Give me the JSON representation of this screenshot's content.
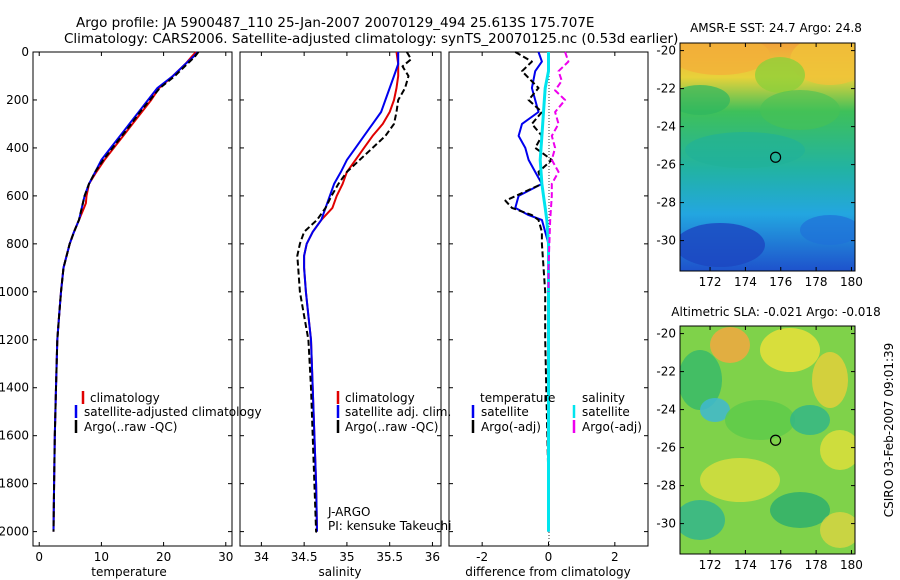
{
  "header": {
    "line1": "Argo profile: JA 5900487_110 25-Jan-2007 20070129_494 25.613S 175.707E",
    "line2": "Climatology: CARS2006. Satellite-adjusted climatology: synTS_20070125.nc (0.53d earlier)"
  },
  "footer_vertical": "CSIRO 03-Feb-2007 09:01:39",
  "colors": {
    "climatology": "#e00000",
    "satellite": "#0000ee",
    "argo": "#000000",
    "sat_salinity": "#00e5ee",
    "argo_salinity": "#ee00ee"
  },
  "chart_data": [
    {
      "type": "line",
      "panel": "temperature",
      "xlabel": "temperature",
      "xlim": [
        -1,
        31
      ],
      "ylim": [
        0,
        2060
      ],
      "y_reversed": true,
      "xticks": [
        0,
        10,
        20,
        30
      ],
      "yticks": [
        0,
        200,
        400,
        600,
        800,
        1000,
        1200,
        1400,
        1600,
        1800,
        2000
      ],
      "legend": [
        "climatology",
        "satellite-adjusted climatology",
        "Argo(..raw -QC)"
      ],
      "series": [
        {
          "name": "climatology",
          "color": "#e00000",
          "x": [
            25.2,
            24.5,
            23.5,
            21.5,
            19.3,
            18,
            16.5,
            15,
            13.5,
            12,
            10.5,
            9.2,
            8,
            7.6,
            7.5,
            7.2,
            6.4,
            5.6,
            4.9,
            4.4,
            3.9,
            3.5,
            3.2,
            2.9,
            2.7,
            2.5,
            2.4,
            2.3
          ],
          "y": [
            0,
            20,
            50,
            100,
            150,
            200,
            250,
            300,
            350,
            400,
            450,
            500,
            550,
            600,
            630,
            650,
            700,
            750,
            800,
            850,
            900,
            1000,
            1100,
            1200,
            1400,
            1600,
            1800,
            2000
          ]
        },
        {
          "name": "satellite-adjusted climatology",
          "color": "#0000ee",
          "x": [
            25.5,
            24.8,
            23.5,
            21.5,
            19,
            17.5,
            16,
            14.5,
            13,
            11.5,
            10,
            9,
            8,
            7.3,
            6.4,
            5.6,
            4.9,
            4.4,
            3.9,
            3.5,
            3.2,
            2.9,
            2.7,
            2.5,
            2.4,
            2.3
          ],
          "y": [
            0,
            20,
            50,
            100,
            150,
            200,
            250,
            300,
            350,
            400,
            450,
            500,
            550,
            600,
            700,
            750,
            800,
            850,
            900,
            1000,
            1100,
            1200,
            1400,
            1600,
            1800,
            2000
          ]
        },
        {
          "name": "Argo(..raw -QC)",
          "color": "#000000",
          "dash": true,
          "x": [
            25.6,
            25,
            23.8,
            21.8,
            19.4,
            17.8,
            16.2,
            14.8,
            13.3,
            11.8,
            10.3,
            9,
            8,
            7.3,
            6.4,
            5.6,
            4.9,
            4.4,
            3.9,
            3.5,
            3.2,
            2.9,
            2.7,
            2.5,
            2.4,
            2.3
          ],
          "y": [
            0,
            20,
            50,
            100,
            150,
            200,
            250,
            300,
            350,
            400,
            450,
            500,
            550,
            600,
            700,
            750,
            800,
            850,
            900,
            1000,
            1100,
            1200,
            1400,
            1600,
            1800,
            2000
          ]
        }
      ]
    },
    {
      "type": "line",
      "panel": "salinity",
      "xlabel": "salinity",
      "xlim": [
        33.75,
        36.1
      ],
      "ylim": [
        0,
        2060
      ],
      "y_reversed": true,
      "xticks": [
        34,
        34.5,
        35,
        35.5,
        36
      ],
      "legend": [
        "climatology",
        "satellite adj. clim.",
        "Argo(..raw -QC)"
      ],
      "annotation": [
        "J-ARGO",
        "PI: kensuke Takeuchi"
      ],
      "series": [
        {
          "name": "climatology",
          "color": "#e00000",
          "x": [
            35.58,
            35.6,
            35.6,
            35.58,
            35.55,
            35.5,
            35.42,
            35.3,
            35.2,
            35.1,
            35.0,
            34.95,
            34.88,
            34.83,
            34.7,
            34.6,
            34.53,
            34.5,
            34.5,
            34.52,
            34.55,
            34.58,
            34.6,
            34.62,
            34.64,
            34.65
          ],
          "y": [
            0,
            50,
            100,
            150,
            200,
            250,
            300,
            350,
            400,
            450,
            500,
            550,
            600,
            650,
            700,
            750,
            800,
            850,
            900,
            1000,
            1100,
            1200,
            1400,
            1600,
            1800,
            2000
          ]
        },
        {
          "name": "satellite adj. clim.",
          "color": "#0000ee",
          "x": [
            35.6,
            35.6,
            35.55,
            35.5,
            35.45,
            35.4,
            35.3,
            35.2,
            35.1,
            35.0,
            34.93,
            34.85,
            34.8,
            34.7,
            34.6,
            34.53,
            34.5,
            34.5,
            34.52,
            34.55,
            34.58,
            34.6,
            34.62,
            34.64,
            34.65
          ],
          "y": [
            0,
            50,
            100,
            150,
            200,
            250,
            300,
            350,
            400,
            450,
            500,
            550,
            600,
            700,
            750,
            800,
            850,
            900,
            1000,
            1100,
            1200,
            1400,
            1600,
            1800,
            2000
          ]
        },
        {
          "name": "Argo(..raw -QC)",
          "color": "#000000",
          "dash": true,
          "x": [
            35.7,
            35.75,
            35.65,
            35.72,
            35.68,
            35.6,
            35.58,
            35.55,
            35.45,
            35.3,
            35.15,
            35.0,
            34.9,
            34.82,
            34.75,
            34.65,
            34.5,
            34.45,
            34.42,
            34.43,
            34.45,
            34.5,
            34.55,
            34.58,
            34.6,
            34.62,
            34.64,
            34.65
          ],
          "y": [
            0,
            30,
            60,
            100,
            150,
            200,
            250,
            300,
            350,
            400,
            450,
            500,
            550,
            600,
            650,
            700,
            750,
            800,
            850,
            900,
            1000,
            1100,
            1200,
            1400,
            1600,
            1800,
            2000,
            2000
          ]
        }
      ]
    },
    {
      "type": "line",
      "panel": "difference",
      "xlabel": "difference from climatology",
      "xlim": [
        -3.0,
        3.0
      ],
      "ylim": [
        0,
        2060
      ],
      "y_reversed": true,
      "xticks": [
        -2,
        0,
        2
      ],
      "legend_left": {
        "title": "temperature",
        "items": [
          "satellite",
          "Argo(-adj)"
        ]
      },
      "legend_right": {
        "title": "salinity",
        "items": [
          "satellite",
          "Argo(-adj)"
        ]
      },
      "series": [
        {
          "name": "temperature satellite",
          "color": "#0000ee",
          "x": [
            -0.3,
            -0.2,
            -0.4,
            -0.5,
            -0.4,
            -0.3,
            -0.8,
            -0.9,
            -0.7,
            -0.6,
            -0.4,
            -0.2,
            -0.9,
            -1.0,
            -0.6,
            -0.2,
            -0.1,
            0,
            0,
            0,
            0,
            0
          ],
          "y": [
            0,
            40,
            80,
            150,
            200,
            250,
            300,
            350,
            400,
            450,
            500,
            550,
            600,
            650,
            680,
            700,
            750,
            800,
            1000,
            1400,
            1800,
            2000
          ]
        },
        {
          "name": "temperature Argo(-adj)",
          "color": "#000000",
          "dash": true,
          "x": [
            -1.0,
            -0.5,
            -0.8,
            -0.3,
            -0.6,
            -0.2,
            -0.5,
            -0.2,
            -0.4,
            0.1,
            -0.3,
            -0.2,
            -1.3,
            -1.1,
            -0.5,
            -0.3,
            -0.2,
            -0.2,
            -0.1,
            -0.1,
            -0.05,
            0,
            0
          ],
          "y": [
            0,
            40,
            80,
            150,
            200,
            250,
            300,
            350,
            400,
            450,
            500,
            550,
            620,
            650,
            680,
            700,
            750,
            800,
            1000,
            1200,
            1500,
            1800,
            2000
          ]
        },
        {
          "name": "salinity satellite",
          "color": "#00e5ee",
          "x": [
            0,
            0,
            -0.1,
            -0.15,
            -0.2,
            -0.25,
            -0.2,
            -0.15,
            -0.1,
            -0.05,
            0,
            0,
            0,
            0
          ],
          "y": [
            0,
            80,
            150,
            250,
            350,
            450,
            550,
            600,
            650,
            700,
            800,
            1200,
            1600,
            2000
          ]
        },
        {
          "name": "salinity Argo(-adj)",
          "color": "#ee00ee",
          "dash": true,
          "x": [
            0.5,
            0.6,
            0.3,
            0.4,
            0.2,
            0.5,
            0.2,
            0.3,
            0.1,
            0.2,
            0.1,
            0.3,
            0.1,
            0.1,
            0.05,
            0,
            0
          ],
          "y": [
            0,
            40,
            80,
            120,
            160,
            200,
            250,
            300,
            350,
            400,
            450,
            500,
            550,
            600,
            700,
            900,
            1000
          ]
        }
      ]
    },
    {
      "type": "heatmap",
      "panel": "sst_map",
      "title": "AMSR-E SST: 24.7 Argo: 24.8",
      "xlim": [
        170.3,
        180.2
      ],
      "ylim": [
        -31.6,
        -19.6
      ],
      "xticks": [
        172,
        174,
        176,
        178,
        180
      ],
      "yticks": [
        -20,
        -22,
        -24,
        -26,
        -28,
        -30
      ],
      "marker": {
        "lon": 175.707,
        "lat": -25.613
      }
    },
    {
      "type": "heatmap",
      "panel": "sla_map",
      "title": "Altimetric SLA: -0.021 Argo: -0.018",
      "xlim": [
        170.3,
        180.2
      ],
      "ylim": [
        -31.6,
        -19.6
      ],
      "xticks": [
        172,
        174,
        176,
        178,
        180
      ],
      "yticks": [
        -20,
        -22,
        -24,
        -26,
        -28,
        -30
      ],
      "marker": {
        "lon": 175.707,
        "lat": -25.613
      }
    }
  ]
}
